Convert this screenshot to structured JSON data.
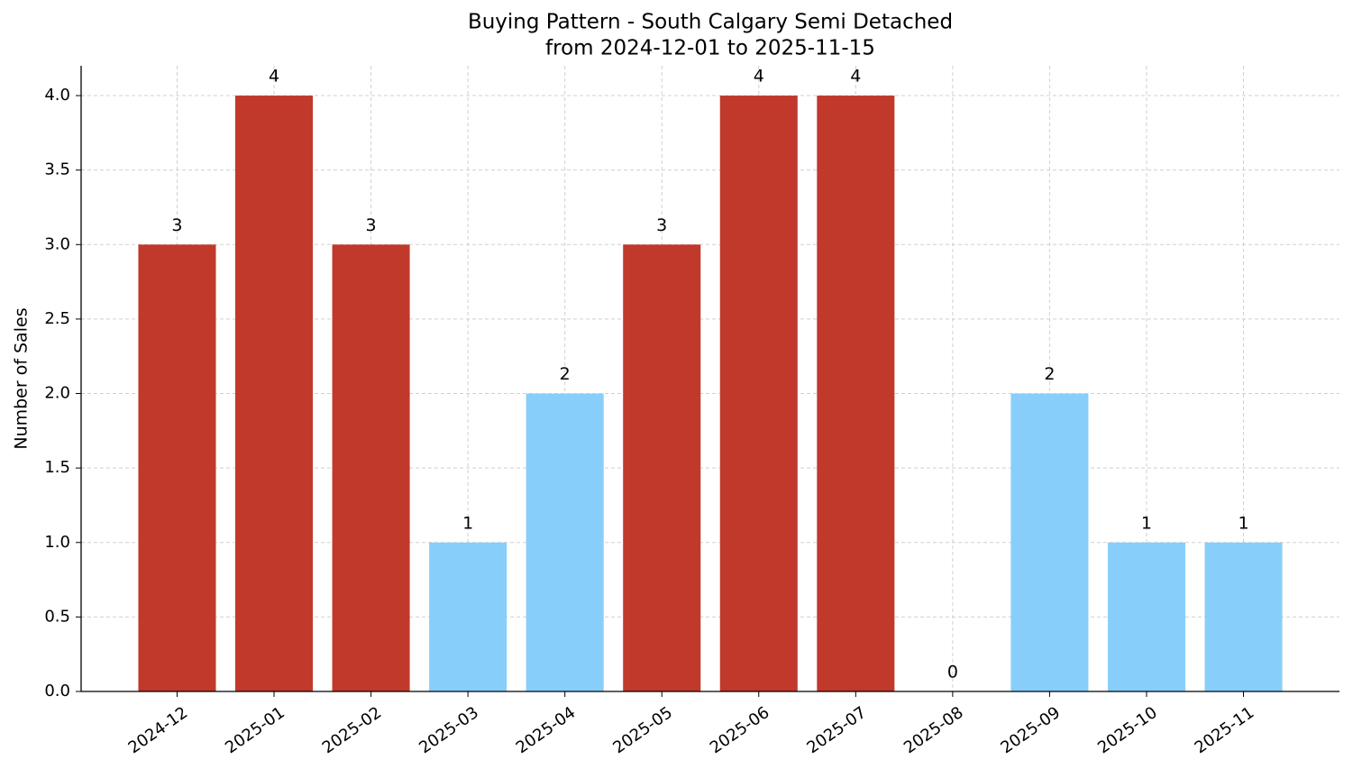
{
  "chart_data": {
    "type": "bar",
    "title": "Buying Pattern - South Calgary Semi Detached",
    "subtitle": "from 2024-12-01 to 2025-11-15",
    "y_label": "Number of Sales",
    "categories": [
      "2024-12",
      "2025-01",
      "2025-02",
      "2025-03",
      "2025-04",
      "2025-05",
      "2025-06",
      "2025-07",
      "2025-08",
      "2025-09",
      "2025-10",
      "2025-11"
    ],
    "values": [
      3,
      4,
      3,
      1,
      2,
      3,
      4,
      4,
      0,
      2,
      1,
      1
    ],
    "colors": [
      "#c0392b",
      "#c0392b",
      "#c0392b",
      "#87cefa",
      "#87cefa",
      "#c0392b",
      "#c0392b",
      "#c0392b",
      "#87cefa",
      "#87cefa",
      "#87cefa",
      "#87cefa"
    ],
    "ylim": [
      0,
      4.2
    ],
    "yticks": [
      {
        "value": 0,
        "label": "0.0"
      },
      0.5,
      {
        "value": 1,
        "label": "1.0"
      },
      1.5,
      {
        "value": 2,
        "label": "2.0"
      },
      2.5,
      {
        "value": 3,
        "label": "3.0"
      },
      3.5,
      {
        "value": 4,
        "label": "4.0"
      }
    ],
    "grid": true
  }
}
